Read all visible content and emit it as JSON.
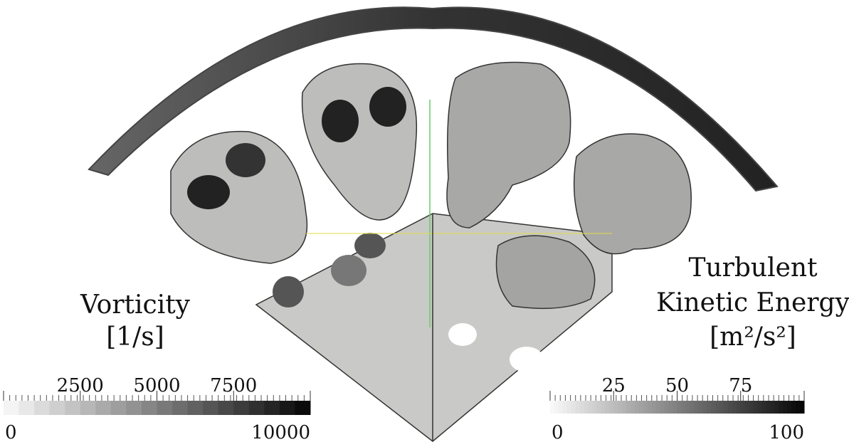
{
  "colorbars": [
    {
      "title_lines": [
        "Vorticity",
        "[1/s]"
      ],
      "lim": [
        0,
        10000
      ],
      "ticks": [
        0,
        2500,
        5000,
        7500,
        10000
      ]
    },
    {
      "title_lines": [
        "Turbulent",
        "Kinetic Energy",
        "[m²/s²]"
      ],
      "lim": [
        0,
        100
      ],
      "ticks": [
        0,
        25,
        50,
        75,
        100
      ]
    }
  ]
}
